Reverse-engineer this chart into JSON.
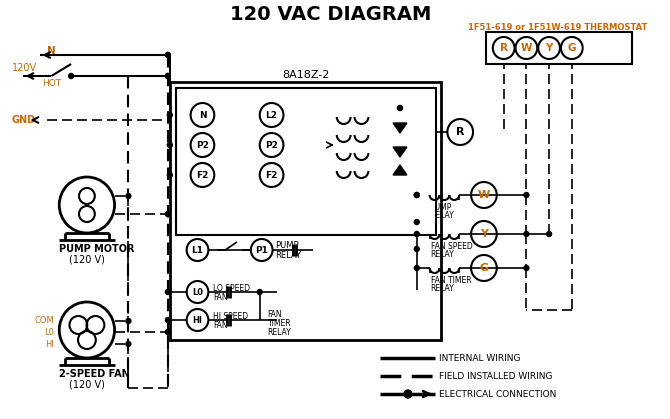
{
  "title": "120 VAC DIAGRAM",
  "title_fontsize": 14,
  "title_fontweight": "bold",
  "bg_color": "#ffffff",
  "line_color": "#000000",
  "orange_color": "#cc6600",
  "thermostat_label": "1F51-619 or 1F51W-619 THERMOSTAT",
  "control_box_label": "8A18Z-2"
}
